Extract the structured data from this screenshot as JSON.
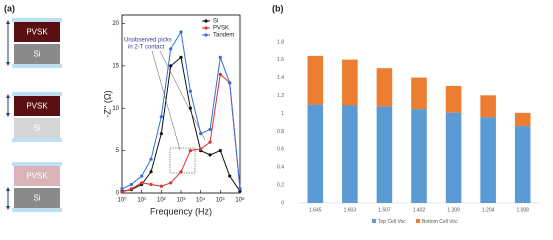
{
  "panel_labels": [
    "(a)",
    "(b)"
  ],
  "schematic": [
    {
      "top": "PVSK",
      "bottom": "Si"
    },
    {
      "top": "PVSK",
      "bottom": "Si"
    },
    {
      "top": "PVSK",
      "bottom": "Si"
    }
  ],
  "chart_data": [
    {
      "type": "line",
      "x_label": "Frequency (Hz)",
      "y_label": "-Z'' (Ω)",
      "annotation": [
        "Unobserved picks",
        "in 2-T contact"
      ],
      "log_x": true,
      "legend": "upper right",
      "x": [
        1,
        3,
        10,
        30,
        100,
        300,
        1000,
        3000,
        10000,
        30000,
        100000,
        300000,
        1000000
      ],
      "series": [
        {
          "name": "Si",
          "color": "#111111",
          "values": [
            0.2,
            0.4,
            1,
            2.5,
            7,
            15,
            16,
            10,
            5,
            4.5,
            5,
            2,
            0.2
          ]
        },
        {
          "name": "PVSK",
          "color": "#e03030",
          "values": [
            0.1,
            0.5,
            1.2,
            1,
            0.8,
            1.2,
            2.5,
            5,
            5.2,
            6,
            14,
            13,
            0.5
          ]
        },
        {
          "name": "Tandem",
          "color": "#2f6fe0",
          "values": [
            0.5,
            1,
            2,
            4,
            9,
            17,
            19,
            12,
            7,
            7.5,
            16,
            13,
            0.5
          ]
        }
      ],
      "xlim": [
        1,
        1000000
      ],
      "xticks": [
        {
          "value": 1,
          "label": "10⁰"
        },
        {
          "value": 10,
          "label": "10¹"
        },
        {
          "value": 100,
          "label": "10²"
        },
        {
          "value": 1000,
          "label": "10³"
        },
        {
          "value": 10000,
          "label": "10⁴"
        },
        {
          "value": 100000,
          "label": "10⁵"
        },
        {
          "value": 1000000,
          "label": "10⁶"
        }
      ],
      "ylim": [
        0,
        21
      ],
      "yticks": [
        0,
        5,
        10,
        15,
        20
      ]
    },
    {
      "type": "stacked_bar",
      "grid": false,
      "legend": "bottom",
      "categories": [
        "1.645",
        "1.603",
        "1.507",
        "1.402",
        "1.309",
        "1.204",
        "1.008"
      ],
      "series": [
        {
          "name": "Top Cell Voc",
          "color": "#5b9bd5",
          "values": [
            1.1,
            1.09,
            1.08,
            1.05,
            1.01,
            0.96,
            0.86
          ]
        },
        {
          "name": "Bottom Cell Voc",
          "color": "#ed7d31",
          "values": [
            0.545,
            0.513,
            0.427,
            0.352,
            0.299,
            0.244,
            0.148
          ]
        }
      ],
      "ylim": [
        0,
        1.8
      ],
      "yticks": [
        0,
        0.2,
        0.4,
        0.6,
        0.8,
        1,
        1.2,
        1.4,
        1.6,
        1.8
      ]
    }
  ]
}
